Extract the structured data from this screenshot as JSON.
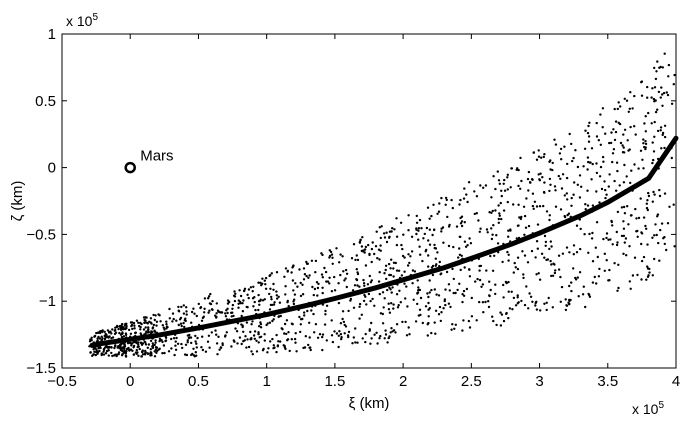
{
  "chart_data": {
    "type": "scatter",
    "xlabel": "ξ (km)",
    "ylabel": "ζ (km)",
    "xlim": [
      -0.5,
      4
    ],
    "ylim": [
      -1.5,
      1
    ],
    "x_scale_label": {
      "base": "x 10",
      "exp": "5"
    },
    "y_scale_label": {
      "base": "x 10",
      "exp": "5"
    },
    "x_ticks": [
      -0.5,
      0,
      0.5,
      1,
      1.5,
      2,
      2.5,
      3,
      3.5,
      4
    ],
    "x_tick_labels": [
      "−0.5",
      "0",
      "0.5",
      "1",
      "1.5",
      "2",
      "2.5",
      "3",
      "3.5",
      "4"
    ],
    "y_ticks": [
      1,
      0.5,
      0,
      -0.5,
      -1,
      -1.5
    ],
    "y_tick_labels": [
      "1",
      "0.5",
      "0",
      "−0.5",
      "−1",
      "−1.5"
    ],
    "grid": false,
    "annotations": [
      {
        "text": "Mars",
        "x": 0,
        "y": 0,
        "marker": "circle"
      }
    ],
    "series": [
      {
        "kind": "line",
        "x": [
          -0.28,
          -0.2,
          -0.1,
          0,
          0.2,
          0.5,
          0.8,
          1.0,
          1.3,
          1.5,
          1.8,
          2.0,
          2.3,
          2.5,
          2.8,
          3.0,
          3.3,
          3.5,
          3.8,
          4.0
        ],
        "y": [
          -1.33,
          -1.315,
          -1.3,
          -1.285,
          -1.255,
          -1.2,
          -1.14,
          -1.1,
          -1.03,
          -0.98,
          -0.9,
          -0.84,
          -0.75,
          -0.68,
          -0.57,
          -0.49,
          -0.36,
          -0.26,
          -0.08,
          0.22
        ]
      },
      {
        "kind": "scatter",
        "description_bands": [
          {
            "x": [
              -0.3,
              0.2
            ],
            "y_range": [
              -1.43,
              -1.2
            ]
          },
          {
            "x": 0.5,
            "y_range": [
              -1.35,
              -0.95
            ]
          },
          {
            "x": 1.0,
            "y_range": [
              -1.3,
              -0.8
            ]
          },
          {
            "x": 1.5,
            "y_range": [
              -1.2,
              -0.5
            ]
          },
          {
            "x": 2.0,
            "y_range": [
              -1.1,
              -0.3
            ]
          },
          {
            "x": 2.5,
            "y_range": [
              -1.0,
              -0.1
            ]
          },
          {
            "x": 3.0,
            "y_range": [
              -0.8,
              0.35
            ]
          },
          {
            "x": 3.5,
            "y_range": [
              -0.75,
              0.6
            ]
          },
          {
            "x": 4.0,
            "y_range": [
              -0.7,
              0.85
            ]
          }
        ],
        "point_count": 1800
      }
    ]
  }
}
